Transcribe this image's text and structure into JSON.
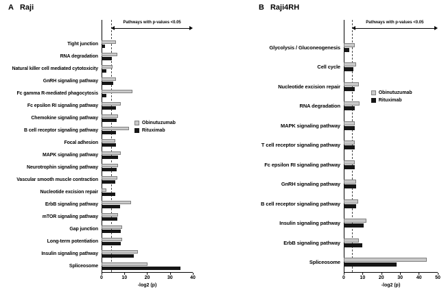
{
  "figure": {
    "panels": [
      {
        "letter": "A",
        "title": "Raji"
      },
      {
        "letter": "B",
        "title": "Raji4RH"
      }
    ]
  },
  "chart_data": [
    {
      "type": "bar",
      "orientation": "horizontal",
      "title": "A Raji",
      "categories": [
        "Tight junction",
        "RNA degradation",
        "Natural killer cell mediated cytotoxicity",
        "GnRH signaling pathway",
        "Fc gamma R-mediated phagocytosis",
        "Fc epsilon RI signaling pathway",
        "Chemokine signaling pathway",
        "B cell receptor signaling pathway",
        "Focal adhesion",
        "MAPK signaling pathway",
        "Neurotrophin signaling pathway",
        "Vascular smooth muscle contraction",
        "Nucleotide excision repair",
        "ErbB signaling pathway",
        "mTOR signaling pathway",
        "Gap junction",
        "Long-term potentiation",
        "Insulin signaling pathway",
        "Spliceosome"
      ],
      "series": [
        {
          "name": "Obinutuzumab",
          "color": "#c9c9c9",
          "border": "#7f7f7f",
          "values": [
            6.3,
            7,
            4.8,
            6.3,
            13.5,
            8.5,
            7.2,
            12,
            6,
            8.5,
            7.2,
            7,
            2.2,
            13,
            7.2,
            9,
            9,
            16,
            20
          ]
        },
        {
          "name": "Rituximab",
          "color": "#161616",
          "values": [
            1.5,
            4.5,
            2.2,
            5.2,
            2,
            6.2,
            6.5,
            6.3,
            6.2,
            7.2,
            6.5,
            6,
            6,
            8,
            7,
            8.5,
            8.5,
            14,
            34.5
          ]
        }
      ],
      "xlabel": "-log2 (p)",
      "xlim": [
        0,
        40
      ],
      "xticks": [
        0,
        10,
        20,
        30,
        40
      ],
      "significance_line": 4.3,
      "annotation": "Pathways with p-values <0.05",
      "legend_pos": {
        "left": "36%",
        "top": "40%"
      },
      "grid": false,
      "legend_position": "middle-right"
    },
    {
      "type": "bar",
      "orientation": "horizontal",
      "title": "B Raji4RH",
      "categories": [
        "Glycolysis / Gluconeogenesis",
        "Cell cycle",
        "Nucleotide excision repair",
        "RNA degradation",
        "MAPK signaling pathway",
        "T cell receptor signaling pathway",
        "Fc epsilon RI signaling pathway",
        "GnRH signaling pathway",
        "B cell receptor signaling pathway",
        "Insulin signaling pathway",
        "ErbB signaling pathway",
        "Spliceosome"
      ],
      "series": [
        {
          "name": "Obinutuzumab",
          "color": "#c9c9c9",
          "border": "#7f7f7f",
          "values": [
            6,
            6.5,
            8,
            8.5,
            6,
            6,
            6,
            6.5,
            7.5,
            12,
            8,
            44
          ]
        },
        {
          "name": "Rituximab",
          "color": "#161616",
          "values": [
            3,
            5,
            6,
            6,
            6,
            6,
            6,
            6.5,
            6.5,
            10.5,
            10,
            28
          ]
        }
      ],
      "xlabel": "-log2 (p)",
      "xlim": [
        0,
        50
      ],
      "xticks": [
        0,
        10,
        20,
        30,
        40,
        50
      ],
      "significance_line": 4.3,
      "annotation": "Pathways with p-values <0.05",
      "legend_pos": {
        "left": "29%",
        "top": "28%"
      },
      "grid": false,
      "legend_position": "middle-right"
    }
  ]
}
